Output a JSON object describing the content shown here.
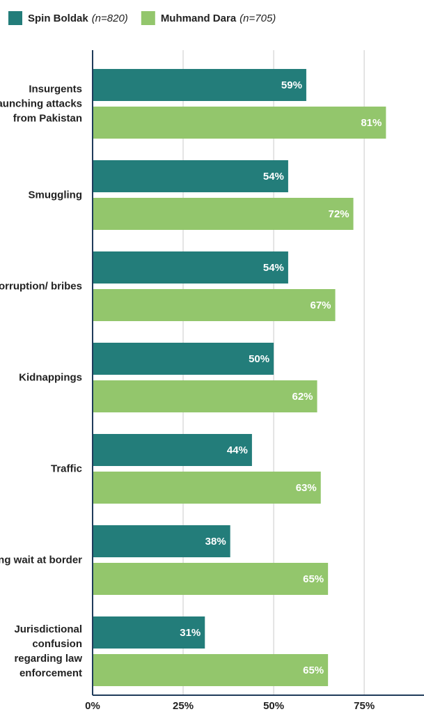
{
  "chart_data": {
    "type": "barh",
    "categories": [
      "Insurgents launching attacks from Pakistan",
      "Smuggling",
      "Corruption/ bribes",
      "Kidnappings",
      "Traffic",
      "Long wait at border",
      "Jurisdictional confusion regarding law enforcement"
    ],
    "series": [
      {
        "name": "Spin Boldak",
        "sample": "(n=820)",
        "color": "#237d7a",
        "values": [
          59,
          54,
          54,
          50,
          44,
          38,
          31
        ],
        "value_labels": [
          "59%",
          "54%",
          "54%",
          "50%",
          "44%",
          "38%",
          "31%"
        ]
      },
      {
        "name": "Muhmand Dara",
        "sample": "(n=705)",
        "color": "#93c66c",
        "values": [
          81,
          72,
          67,
          62,
          63,
          65,
          65
        ],
        "value_labels": [
          "81%",
          "72%",
          "67%",
          "62%",
          "63%",
          "65%",
          "65%"
        ]
      }
    ],
    "xlim": [
      0,
      91.5
    ],
    "xticks": [
      {
        "value": 0,
        "label": "0%"
      },
      {
        "value": 25,
        "label": "25%"
      },
      {
        "value": 50,
        "label": "50%"
      },
      {
        "value": 75,
        "label": "75%"
      }
    ],
    "grid": true
  }
}
